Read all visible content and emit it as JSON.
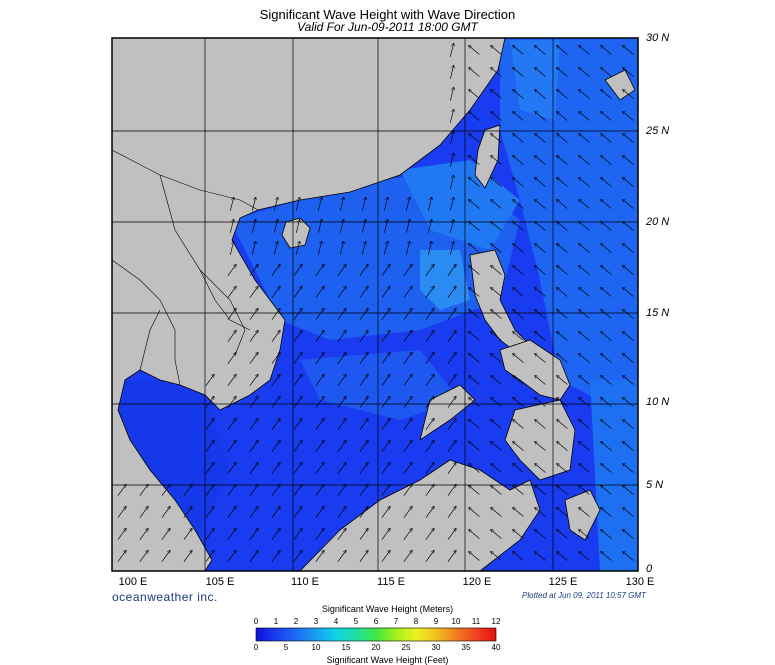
{
  "header": {
    "title": "Significant Wave Height with Wave Direction",
    "subtitle": "Valid For Jun-09-2011 18:00 GMT"
  },
  "axes": {
    "latitude_labels": [
      "30 N",
      "25 N",
      "20 N",
      "15 N",
      "10 N",
      "5 N",
      "0"
    ],
    "longitude_labels": [
      "100 E",
      "105 E",
      "110 E",
      "115 E",
      "120 E",
      "125 E",
      "130 E"
    ]
  },
  "footer": {
    "brand": "oceanweather inc.",
    "plotted": "Plotted at Jun 09, 2011 10:57 GMT"
  },
  "colorbar": {
    "title_meters": "Significant Wave Height (Meters)",
    "title_feet": "Significant Wave Height (Feet)",
    "meters_ticks": [
      "0",
      "1",
      "2",
      "3",
      "4",
      "5",
      "6",
      "7",
      "8",
      "9",
      "10",
      "11",
      "12"
    ],
    "feet_ticks": [
      "0",
      "5",
      "10",
      "15",
      "20",
      "25",
      "30",
      "35",
      "40"
    ],
    "colors": [
      "#1010d8",
      "#1a3cf0",
      "#1e6cf2",
      "#18a0f0",
      "#10d0e8",
      "#20e0a0",
      "#40e840",
      "#a0f020",
      "#f0f020",
      "#f0c020",
      "#f08020",
      "#f04020",
      "#e01010"
    ]
  },
  "map": {
    "land_color": "#c0c0c0",
    "ocean_base_color": "#1a3cf0",
    "extent": {
      "lon_min": 100,
      "lon_max": 130,
      "lat_min": 0,
      "lat_max": 30
    },
    "dominant_wave_direction": "southwest to northeast"
  }
}
